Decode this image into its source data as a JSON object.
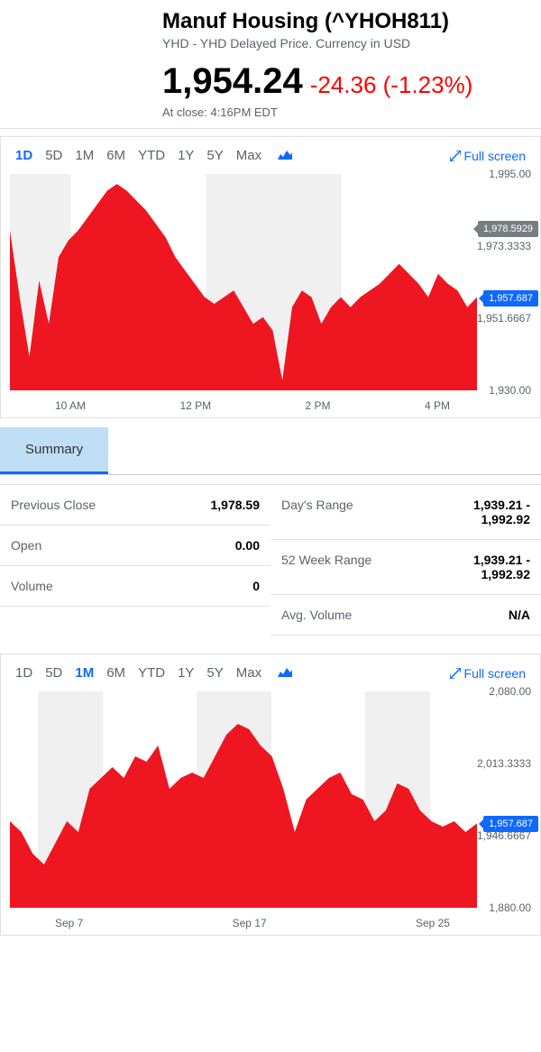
{
  "header": {
    "title": "Manuf Housing (^YHOH811)",
    "subtitle": "YHD - YHD Delayed Price. Currency in USD",
    "price": "1,954.24",
    "change": "-24.36 (-1.23%)",
    "close_time": "At close: 4:16PM EDT"
  },
  "chart1": {
    "tabs": [
      "1D",
      "5D",
      "1M",
      "6M",
      "YTD",
      "1Y",
      "5Y",
      "Max"
    ],
    "active": "1D",
    "fullscreen": "Full screen",
    "fill_color": "#ee1620",
    "background_band_color": "#f0f0f0",
    "ylim": [
      1930,
      1995
    ],
    "y_labels": [
      {
        "v": 1995,
        "text": "1,995.00"
      },
      {
        "v": 1973.3333,
        "text": "1,973.3333"
      },
      {
        "v": 1951.6667,
        "text": "1,951.6667"
      },
      {
        "v": 1930,
        "text": "1,930.00"
      }
    ],
    "badges": [
      {
        "v": 1978.5929,
        "text": "1,978.5929",
        "cls": "gray"
      },
      {
        "v": 1957.687,
        "text": "1,957.687",
        "cls": "blue"
      }
    ],
    "x_labels": [
      "10 AM",
      "12 PM",
      "2 PM",
      "4 PM"
    ],
    "bands": [
      [
        0,
        0.13
      ],
      [
        0.42,
        0.71
      ]
    ],
    "values": [
      1978,
      1958,
      1940,
      1963,
      1950,
      1970,
      1975,
      1978,
      1982,
      1986,
      1990,
      1992,
      1990,
      1987,
      1984,
      1980,
      1976,
      1970,
      1966,
      1962,
      1958,
      1956,
      1958,
      1960,
      1955,
      1950,
      1952,
      1948,
      1933,
      1955,
      1960,
      1958,
      1950,
      1955,
      1958,
      1955,
      1958,
      1960,
      1962,
      1965,
      1968,
      1965,
      1962,
      1958,
      1965,
      1962,
      1960,
      1955,
      1958
    ]
  },
  "summary": {
    "tab": "Summary"
  },
  "stats": {
    "left": [
      {
        "label": "Previous Close",
        "value": "1,978.59"
      },
      {
        "label": "Open",
        "value": "0.00"
      },
      {
        "label": "Volume",
        "value": "0"
      }
    ],
    "right": [
      {
        "label": "Day's Range",
        "value": "1,939.21 - 1,992.92"
      },
      {
        "label": "52 Week Range",
        "value": "1,939.21 - 1,992.92"
      },
      {
        "label": "Avg. Volume",
        "value": "N/A"
      }
    ]
  },
  "chart2": {
    "tabs": [
      "1D",
      "5D",
      "1M",
      "6M",
      "YTD",
      "1Y",
      "5Y",
      "Max"
    ],
    "active": "1M",
    "fullscreen": "Full screen",
    "fill_color": "#ee1620",
    "background_band_color": "#f0f0f0",
    "ylim": [
      1880,
      2080
    ],
    "y_labels": [
      {
        "v": 2080,
        "text": "2,080.00"
      },
      {
        "v": 2013.3333,
        "text": "2,013.3333"
      },
      {
        "v": 1946.6667,
        "text": "1,946.6667"
      },
      {
        "v": 1880,
        "text": "1,880.00"
      }
    ],
    "badges": [
      {
        "v": 1957.687,
        "text": "1,957.687",
        "cls": "blue"
      }
    ],
    "x_labels": [
      "Sep 7",
      "Sep 17",
      "Sep 25"
    ],
    "bands": [
      [
        0.06,
        0.2
      ],
      [
        0.4,
        0.56
      ],
      [
        0.76,
        0.9
      ]
    ],
    "values": [
      1960,
      1950,
      1930,
      1920,
      1940,
      1960,
      1950,
      1990,
      2000,
      2010,
      2000,
      2020,
      2015,
      2030,
      1990,
      2000,
      2005,
      2000,
      2020,
      2040,
      2050,
      2045,
      2030,
      2020,
      1990,
      1950,
      1980,
      1990,
      2000,
      2005,
      1985,
      1980,
      1960,
      1970,
      1995,
      1990,
      1970,
      1960,
      1955,
      1960,
      1950,
      1958
    ]
  }
}
